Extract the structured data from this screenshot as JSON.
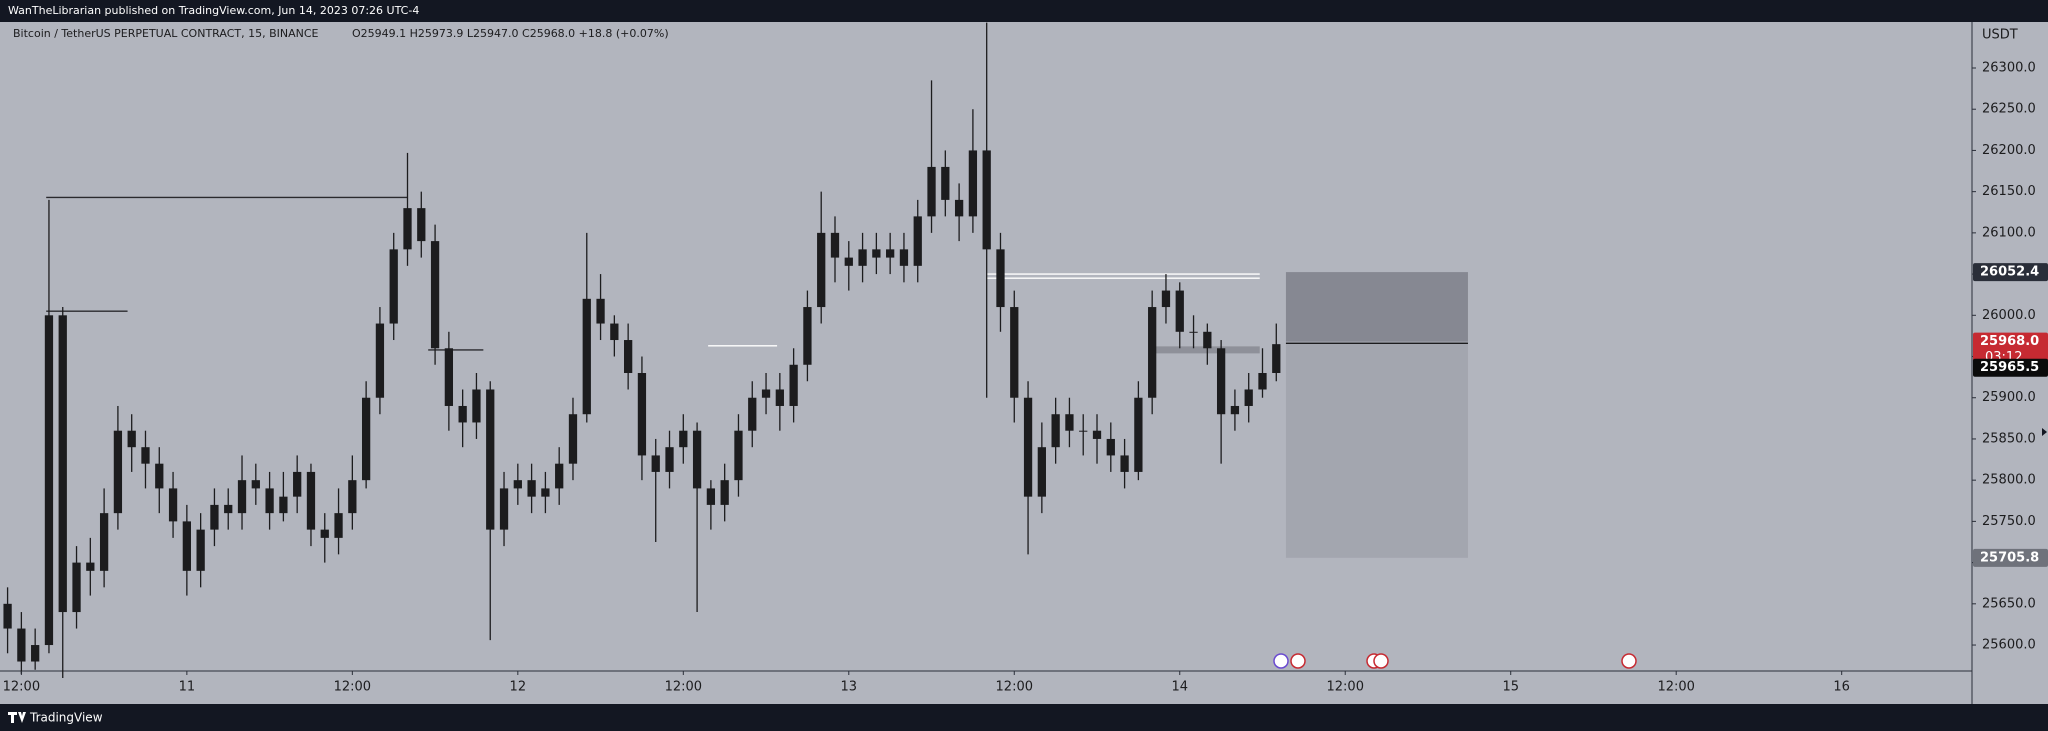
{
  "header": "WanTheLibrarian published on TradingView.com, Jun 14, 2023 07:26 UTC-4",
  "footer": "TradingView",
  "chart_data": {
    "type": "candlestick",
    "title": "Bitcoin / TetherUS PERPETUAL CONTRACT, 15, BINANCE",
    "ohlc_legend": "O25949.1 H25973.9 L25947.0 C25968.0 +18.8 (+0.07%)",
    "y_unit": "USDT",
    "color": "#1c1c1e",
    "xlim": [
      -13.55,
      129.45
    ],
    "xticks": [
      {
        "value": -12,
        "label": "12:00"
      },
      {
        "value": 0,
        "label": "11"
      },
      {
        "value": 12,
        "label": "12:00"
      },
      {
        "value": 24,
        "label": "12"
      },
      {
        "value": 36,
        "label": "12:00"
      },
      {
        "value": 48,
        "label": "13"
      },
      {
        "value": 60,
        "label": "12:00"
      },
      {
        "value": 72,
        "label": "14"
      },
      {
        "value": 84,
        "label": "12:00"
      },
      {
        "value": 96,
        "label": "15"
      },
      {
        "value": 108,
        "label": "12:00"
      },
      {
        "value": 120,
        "label": "16"
      }
    ],
    "ylim": [
      25568.5,
      26355.8
    ],
    "yticks": [
      {
        "value": 25600,
        "label": "25600.0"
      },
      {
        "value": 25650,
        "label": "25650.0"
      },
      {
        "value": 25700,
        "label": "25700.0"
      },
      {
        "value": 25750,
        "label": "25750.0"
      },
      {
        "value": 25800,
        "label": "25800.0"
      },
      {
        "value": 25850,
        "label": "25850.0"
      },
      {
        "value": 25900,
        "label": "25900.0"
      },
      {
        "value": 25950,
        "label": "25950.0"
      },
      {
        "value": 26000,
        "label": "26000.0"
      },
      {
        "value": 26050,
        "label": "26050.0"
      },
      {
        "value": 26100,
        "label": "26100.0"
      },
      {
        "value": 26150,
        "label": "26150.0"
      },
      {
        "value": 26200,
        "label": "26200.0"
      },
      {
        "value": 26250,
        "label": "26250.0"
      },
      {
        "value": 26300,
        "label": "26300.0"
      }
    ],
    "grid": false,
    "x": [
      -13,
      -12,
      -11,
      -10,
      -9,
      -8,
      -7,
      -6,
      -5,
      -4,
      -3,
      -2,
      -1,
      0,
      1,
      2,
      3,
      4,
      5,
      6,
      7,
      8,
      9,
      10,
      11,
      12,
      13,
      14,
      15,
      16,
      17,
      18,
      19,
      20,
      21,
      22,
      23,
      24,
      25,
      26,
      27,
      28,
      29,
      30,
      31,
      32,
      33,
      34,
      35,
      36,
      37,
      38,
      39,
      40,
      41,
      42,
      43,
      44,
      45,
      46,
      47,
      48,
      49,
      50,
      51,
      52,
      53,
      54,
      55,
      56,
      57,
      58,
      59,
      60,
      61,
      62,
      63,
      64,
      65,
      66,
      67,
      68,
      69,
      70,
      71,
      72,
      73,
      74,
      75,
      76,
      77,
      78,
      79
    ],
    "open": [
      25650,
      25620,
      25580,
      25600,
      26000,
      25640,
      25700,
      25690,
      25760,
      25860,
      25840,
      25820,
      25790,
      25750,
      25690,
      25740,
      25770,
      25760,
      25800,
      25790,
      25760,
      25780,
      25810,
      25740,
      25730,
      25760,
      25800,
      25900,
      25990,
      26080,
      26130,
      26090,
      25960,
      25890,
      25870,
      25910,
      25740,
      25790,
      25800,
      25780,
      25790,
      25820,
      25880,
      26020,
      25990,
      25970,
      25930,
      25830,
      25810,
      25840,
      25860,
      25790,
      25770,
      25800,
      25860,
      25900,
      25910,
      25890,
      25940,
      26010,
      26100,
      26070,
      26060,
      26080,
      26070,
      26080,
      26060,
      26120,
      26180,
      26140,
      26120,
      26200,
      26080,
      26010,
      25900,
      25780,
      25840,
      25880,
      25860,
      25860,
      25850,
      25830,
      25810,
      25900,
      26010,
      26030,
      25980,
      25980,
      25960,
      25880,
      25890,
      25910,
      25930
    ],
    "high": [
      25670,
      25640,
      25620,
      26140,
      26010,
      25720,
      25730,
      25790,
      25890,
      25880,
      25860,
      25840,
      25810,
      25770,
      25760,
      25790,
      25790,
      25830,
      25820,
      25810,
      25810,
      25830,
      25820,
      25760,
      25790,
      25830,
      25920,
      26010,
      26100,
      26197,
      26150,
      26110,
      25980,
      25910,
      25930,
      25920,
      25810,
      25820,
      25820,
      25810,
      25840,
      25900,
      26100,
      26050,
      26000,
      25990,
      25950,
      25850,
      25860,
      25880,
      25870,
      25800,
      25820,
      25880,
      25920,
      25930,
      25930,
      25960,
      26030,
      26150,
      26120,
      26090,
      26100,
      26100,
      26100,
      26100,
      26140,
      26285,
      26200,
      26160,
      26250,
      26355,
      26100,
      26030,
      25920,
      25870,
      25900,
      25900,
      25880,
      25880,
      25870,
      25850,
      25920,
      26030,
      26050,
      26040,
      26000,
      25990,
      25970,
      25910,
      25930,
      25960,
      25990
    ],
    "low": [
      25590,
      25565,
      25570,
      25590,
      25560,
      25620,
      25660,
      25670,
      25740,
      25810,
      25790,
      25760,
      25730,
      25660,
      25670,
      25720,
      25740,
      25740,
      25770,
      25740,
      25750,
      25760,
      25720,
      25700,
      25710,
      25740,
      25790,
      25880,
      25970,
      26060,
      26070,
      25940,
      25860,
      25840,
      25850,
      25606,
      25720,
      25770,
      25760,
      25760,
      25770,
      25800,
      25870,
      25970,
      25950,
      25910,
      25800,
      25725,
      25790,
      25820,
      25640,
      25740,
      25750,
      25780,
      25840,
      25880,
      25860,
      25870,
      25920,
      25990,
      26040,
      26030,
      26040,
      26050,
      26050,
      26040,
      26040,
      26100,
      26120,
      26090,
      26100,
      25900,
      25980,
      25870,
      25710,
      25760,
      25820,
      25840,
      25830,
      25820,
      25810,
      25790,
      25800,
      25880,
      25990,
      25960,
      25960,
      25940,
      25820,
      25860,
      25870,
      25900,
      25920
    ],
    "close": [
      25620,
      25580,
      25600,
      26000,
      25640,
      25700,
      25690,
      25760,
      25860,
      25840,
      25820,
      25790,
      25750,
      25690,
      25740,
      25770,
      25760,
      25800,
      25790,
      25760,
      25780,
      25810,
      25740,
      25730,
      25760,
      25800,
      25900,
      25990,
      26080,
      26130,
      26090,
      25960,
      25890,
      25870,
      25910,
      25740,
      25790,
      25800,
      25780,
      25790,
      25820,
      25880,
      26020,
      25990,
      25970,
      25930,
      25830,
      25810,
      25840,
      25860,
      25790,
      25770,
      25800,
      25860,
      25900,
      25910,
      25890,
      25940,
      26010,
      26100,
      26070,
      26060,
      26080,
      26070,
      26080,
      26060,
      26120,
      26180,
      26140,
      26120,
      26200,
      26080,
      26010,
      25900,
      25780,
      25840,
      25880,
      25860,
      25860,
      25850,
      25830,
      25810,
      25900,
      26010,
      26030,
      25980,
      25980,
      25960,
      25880,
      25890,
      25910,
      25930,
      25965
    ],
    "levels": [
      {
        "x": [
          -10.2,
          16.0
        ],
        "price": 26143,
        "color": "#2a2a2e"
      },
      {
        "x": [
          -10.2,
          -4.3
        ],
        "price": 26005,
        "color": "#2a2a2e"
      },
      {
        "x": [
          17.5,
          21.5
        ],
        "price": 25958,
        "color": "#2a2a2e"
      },
      {
        "x": [
          37.8,
          42.8
        ],
        "price": 25963,
        "color": "#ffffff"
      },
      {
        "x": [
          58.0,
          77.8
        ],
        "price": 26050,
        "color": "#ffffff"
      },
      {
        "x": [
          58.0,
          77.8
        ],
        "price": 26045,
        "color": "#ffffff"
      },
      {
        "x": [
          69.8,
          77.8
        ],
        "price": 25958,
        "color": "#8e9099"
      },
      {
        "x": [
          79.7,
          92.9
        ],
        "price": 25966,
        "color": "#1c1c1e"
      }
    ],
    "position": {
      "x": [
        79.7,
        92.9
      ]
    },
    "price_tags": {
      "values": [
        26052.4,
        25968.0,
        25965.5,
        25705.8
      ],
      "value_labels": [
        "26052.4",
        "25968.0",
        "25965.5",
        "25705.8"
      ],
      "colors": [
        "#2a2e39",
        "#c62a32",
        "#0b0b0b",
        "#6f727b"
      ]
    },
    "countdown": "03:12"
  }
}
